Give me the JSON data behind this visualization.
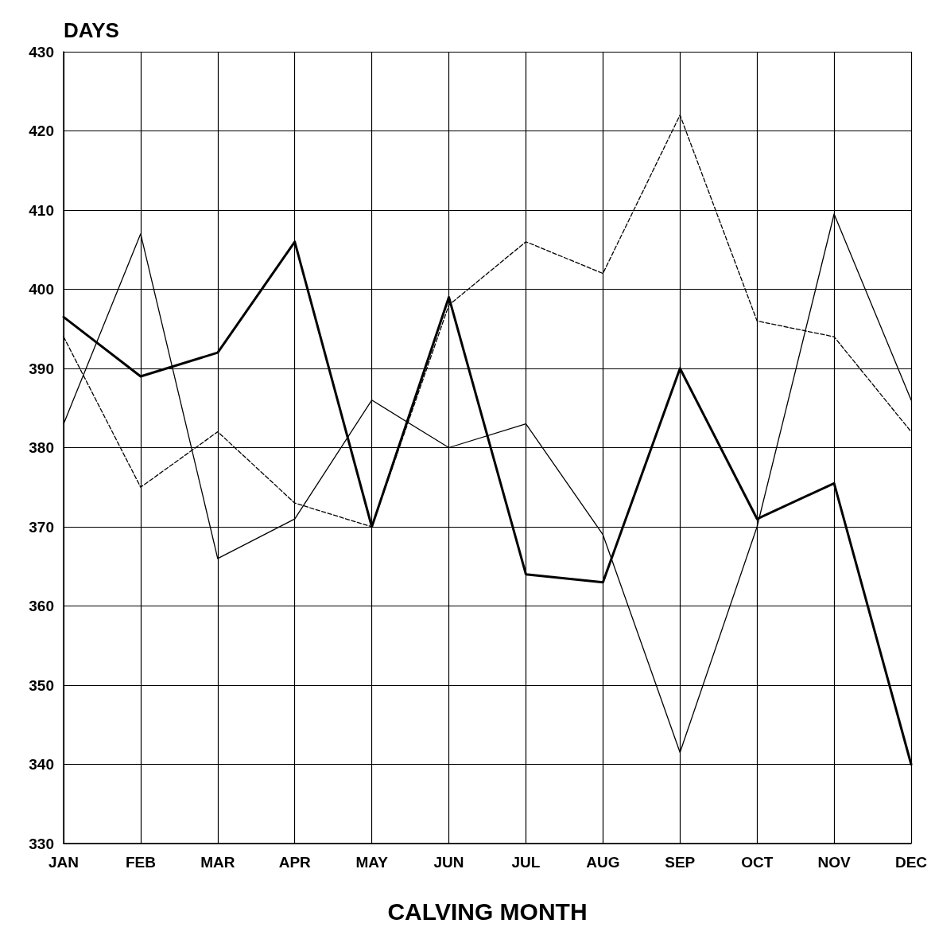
{
  "chart_data": {
    "type": "line",
    "ylabel": "DAYS",
    "xlabel": "CALVING MONTH",
    "categories": [
      "JAN",
      "FEB",
      "MAR",
      "APR",
      "MAY",
      "JUN",
      "JUL",
      "AUG",
      "SEP",
      "OCT",
      "NOV",
      "DEC"
    ],
    "series": [
      {
        "color": "#000000",
        "line_style": "solid",
        "values": [
          396.5,
          389,
          392,
          406,
          370,
          399,
          364,
          363,
          390,
          371,
          375.5,
          340
        ]
      },
      {
        "color": "#000000",
        "line_style": "solid",
        "values": [
          383,
          407,
          366,
          371,
          386,
          380,
          383,
          369,
          341.5,
          370,
          409.5,
          386
        ]
      },
      {
        "color": "#000000",
        "line_style": "dashed",
        "values": [
          394,
          375,
          382,
          373,
          370,
          398,
          406,
          402,
          422,
          396,
          394,
          382
        ]
      }
    ],
    "ylim": [
      330,
      430
    ],
    "yticks": [
      330,
      340,
      350,
      360,
      370,
      380,
      390,
      400,
      410,
      420,
      430
    ],
    "grid": true,
    "marker": "none"
  }
}
